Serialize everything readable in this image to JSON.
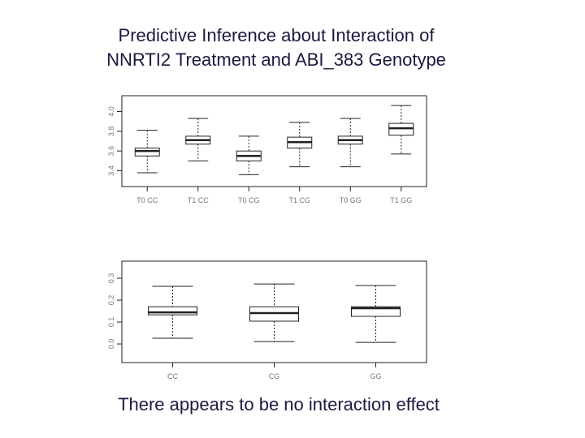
{
  "title": [
    "Predictive Inference about Interaction of",
    "NNRTI2 Treatment and ABI_383 Genotype"
  ],
  "caption": "There appears to be no interaction effect",
  "chart_data": [
    {
      "type": "box",
      "categories": [
        "T0 CC",
        "T1 CC",
        "T0 CG",
        "T1 CG",
        "T0 GG",
        "T1 GG"
      ],
      "stats": [
        {
          "whislo": 3.38,
          "q1": 3.55,
          "med": 3.6,
          "q3": 3.63,
          "whishi": 3.81
        },
        {
          "whislo": 3.5,
          "q1": 3.67,
          "med": 3.71,
          "q3": 3.75,
          "whishi": 3.93
        },
        {
          "whislo": 3.36,
          "q1": 3.5,
          "med": 3.55,
          "q3": 3.6,
          "whishi": 3.75
        },
        {
          "whislo": 3.44,
          "q1": 3.63,
          "med": 3.69,
          "q3": 3.74,
          "whishi": 3.89
        },
        {
          "whislo": 3.44,
          "q1": 3.67,
          "med": 3.71,
          "q3": 3.75,
          "whishi": 3.93
        },
        {
          "whislo": 3.57,
          "q1": 3.76,
          "med": 3.83,
          "q3": 3.88,
          "whishi": 4.06
        }
      ],
      "ylim": [
        3.24,
        4.16
      ],
      "yticks": [
        3.4,
        3.6,
        3.8,
        {
          "value": 4.0,
          "label": "4.0"
        }
      ]
    },
    {
      "type": "box",
      "categories": [
        "CC",
        "CG",
        "GG"
      ],
      "stats": [
        {
          "whislo": 0.026,
          "q1": 0.133,
          "med": 0.144,
          "q3": 0.17,
          "whishi": 0.263
        },
        {
          "whislo": 0.011,
          "q1": 0.104,
          "med": 0.141,
          "q3": 0.17,
          "whishi": 0.274
        },
        {
          "whislo": 0.007,
          "q1": 0.126,
          "med": 0.163,
          "q3": 0.17,
          "whishi": 0.267
        }
      ],
      "ylim": [
        -0.085,
        0.378
      ],
      "yticks": [
        {
          "value": 0,
          "label": "0.0"
        },
        0.1,
        0.2,
        0.3
      ]
    }
  ]
}
